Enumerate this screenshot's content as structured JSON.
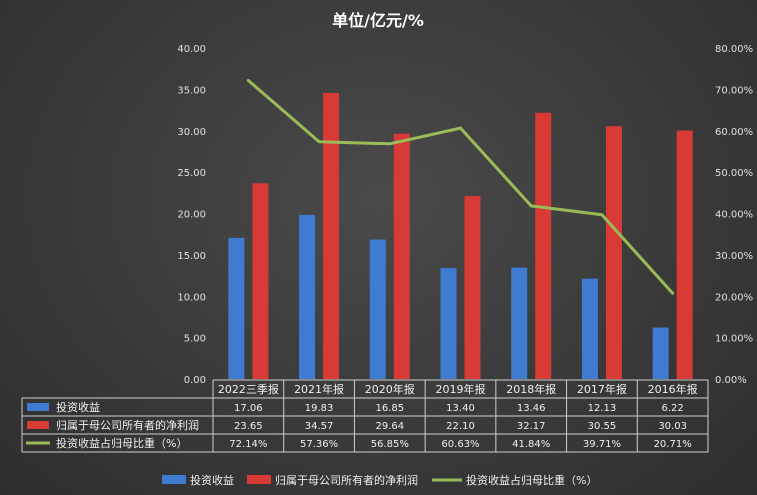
{
  "chart_data": {
    "type": "bar",
    "title": "单位/亿元/%",
    "categories": [
      "2022三季报",
      "2021年报",
      "2020年报",
      "2019年报",
      "2018年报",
      "2017年报",
      "2016年报"
    ],
    "series": [
      {
        "name": "投资收益",
        "type": "bar",
        "axis": "left",
        "color": "#3f7bd0",
        "values": [
          17.06,
          19.83,
          16.85,
          13.4,
          13.46,
          12.13,
          6.22
        ],
        "labels": [
          "17.06",
          "19.83",
          "16.85",
          "13.40",
          "13.46",
          "12.13",
          "6.22"
        ]
      },
      {
        "name": "归属于母公司所有者的净利润",
        "type": "bar",
        "axis": "left",
        "color": "#d83a35",
        "values": [
          23.65,
          34.57,
          29.64,
          22.1,
          32.17,
          30.55,
          30.03
        ],
        "labels": [
          "23.65",
          "34.57",
          "29.64",
          "22.10",
          "32.17",
          "30.55",
          "30.03"
        ]
      },
      {
        "name": "投资收益占归母比重（%）",
        "type": "line",
        "axis": "right",
        "color": "#9bbb59",
        "values": [
          72.14,
          57.36,
          56.85,
          60.63,
          41.84,
          39.71,
          20.71
        ],
        "labels": [
          "72.14%",
          "57.36%",
          "56.85%",
          "60.63%",
          "41.84%",
          "39.71%",
          "20.71%"
        ]
      }
    ],
    "left_axis": {
      "ylim": [
        0,
        40
      ],
      "ticks": [
        "0.00",
        "5.00",
        "10.00",
        "15.00",
        "20.00",
        "25.00",
        "30.00",
        "35.00",
        "40.00"
      ]
    },
    "right_axis": {
      "ylim": [
        0,
        80
      ],
      "ticks": [
        "0.00%",
        "10.00%",
        "20.00%",
        "30.00%",
        "40.00%",
        "50.00%",
        "60.00%",
        "70.00%",
        "80.00%"
      ]
    },
    "legend": {
      "position": "bottom",
      "labels": [
        "投资收益",
        "归属于母公司所有者的净利润",
        "投资收益占归母比重（%）"
      ]
    },
    "data_table": true,
    "grid": false
  }
}
